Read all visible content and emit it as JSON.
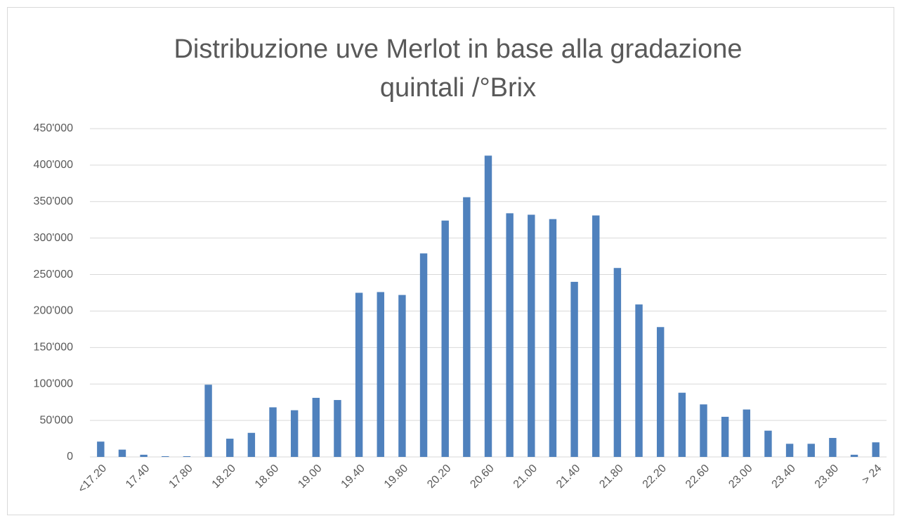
{
  "chart_data": {
    "type": "bar",
    "title": [
      "Distribuzione uve Merlot in base alla gradazione",
      "quintali /°Brix"
    ],
    "categories": [
      "<17.20",
      null,
      "17.40",
      null,
      "17.80",
      null,
      "18.20",
      null,
      "18.60",
      null,
      "19.00",
      null,
      "19.40",
      null,
      "19.80",
      null,
      "20.20",
      null,
      "20.60",
      null,
      "21.00",
      null,
      "21.40",
      null,
      "21.80",
      null,
      "22.20",
      null,
      "22.60",
      null,
      "23.00",
      null,
      "23.40",
      null,
      "23.80",
      null,
      "> 24"
    ],
    "values": [
      21000,
      10000,
      3000,
      1000,
      1000,
      99000,
      25000,
      33000,
      68000,
      64000,
      81000,
      78000,
      225000,
      226000,
      222000,
      279000,
      324000,
      356000,
      413000,
      334000,
      332000,
      326000,
      240000,
      331000,
      259000,
      209000,
      178000,
      88000,
      72000,
      55000,
      65000,
      36000,
      18000,
      18000,
      26000,
      3000,
      20000
    ],
    "color": "#4f81bd",
    "ylim": [
      0,
      450000
    ],
    "yticks": [
      0,
      {
        "value": 50000,
        "label": "50'000"
      },
      {
        "value": 100000,
        "label": "100'000"
      },
      {
        "value": 150000,
        "label": "150'000"
      },
      {
        "value": 200000,
        "label": "200'000"
      },
      {
        "value": 250000,
        "label": "250'000"
      },
      {
        "value": 300000,
        "label": "300'000"
      },
      {
        "value": 350000,
        "label": "350'000"
      },
      {
        "value": 400000,
        "label": "400'000"
      },
      {
        "value": 450000,
        "label": "450'000"
      }
    ],
    "grid": true
  }
}
